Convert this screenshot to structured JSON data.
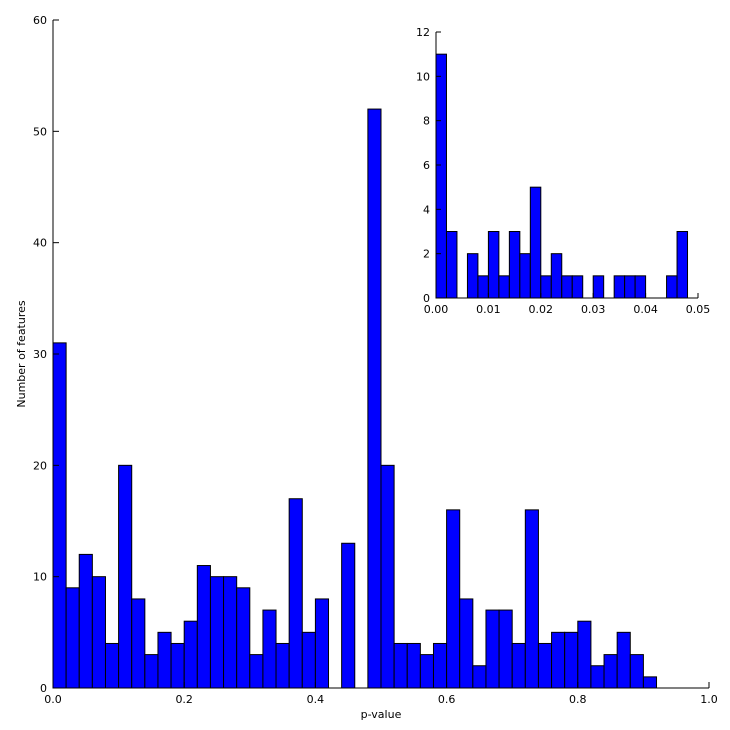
{
  "colors": {
    "bar": "#0000ff",
    "edge": "#000000",
    "axis": "#000000",
    "background": "#ffffff"
  },
  "chart_data": [
    {
      "type": "bar",
      "role": "main",
      "xlabel": "p-value",
      "ylabel": "Number of features",
      "xlim": [
        0,
        1.0
      ],
      "ylim": [
        0,
        60
      ],
      "xticks": [
        0,
        0.2,
        0.4,
        0.6,
        0.8,
        1.0
      ],
      "xtick_labels": [
        "0.0",
        "0.2",
        "0.4",
        "0.6",
        "0.8",
        "1.0"
      ],
      "yticks": [
        0,
        10,
        20,
        30,
        40,
        50,
        60
      ],
      "ytick_labels": [
        "0",
        "10",
        "20",
        "30",
        "40",
        "50",
        "60"
      ],
      "grid": false,
      "bin_width": 0.02,
      "bin_starts": [
        0.0,
        0.02,
        0.04,
        0.06,
        0.08,
        0.1,
        0.12,
        0.14,
        0.16,
        0.18,
        0.2,
        0.22,
        0.24,
        0.26,
        0.28,
        0.3,
        0.32,
        0.34,
        0.36,
        0.38,
        0.4,
        0.42,
        0.44,
        0.46,
        0.48,
        0.5,
        0.52,
        0.54,
        0.56,
        0.58,
        0.6,
        0.62,
        0.64,
        0.66,
        0.68,
        0.7,
        0.72,
        0.74,
        0.76,
        0.78,
        0.8,
        0.82,
        0.84,
        0.86,
        0.88,
        0.9
      ],
      "values": [
        31,
        9,
        12,
        10,
        4,
        20,
        8,
        3,
        5,
        4,
        6,
        11,
        10,
        10,
        9,
        3,
        7,
        4,
        17,
        5,
        8,
        0,
        13,
        0,
        52,
        20,
        4,
        4,
        3,
        4,
        16,
        8,
        2,
        7,
        7,
        4,
        16,
        4,
        5,
        5,
        6,
        2,
        3,
        5,
        3,
        1
      ]
    },
    {
      "type": "bar",
      "role": "inset",
      "xlabel": "",
      "ylabel": "",
      "xlim": [
        0,
        0.05
      ],
      "ylim": [
        0,
        12
      ],
      "xticks": [
        0,
        0.01,
        0.02,
        0.03,
        0.04,
        0.05
      ],
      "xtick_labels": [
        "0.00",
        "0.01",
        "0.02",
        "0.03",
        "0.04",
        "0.05"
      ],
      "yticks": [
        0,
        2,
        4,
        6,
        8,
        10,
        12
      ],
      "ytick_labels": [
        "0",
        "2",
        "4",
        "6",
        "8",
        "10",
        "12"
      ],
      "grid": false,
      "bin_width": 0.002,
      "bin_starts": [
        0.0,
        0.002,
        0.004,
        0.006,
        0.008,
        0.01,
        0.012,
        0.014,
        0.016,
        0.018,
        0.02,
        0.022,
        0.024,
        0.026,
        0.028,
        0.03,
        0.032,
        0.034,
        0.036,
        0.038,
        0.04,
        0.042,
        0.044,
        0.046
      ],
      "values": [
        11,
        3,
        0,
        2,
        1,
        3,
        1,
        3,
        2,
        5,
        1,
        2,
        1,
        1,
        0,
        1,
        0,
        1,
        1,
        1,
        0,
        0,
        1,
        3
      ]
    }
  ]
}
